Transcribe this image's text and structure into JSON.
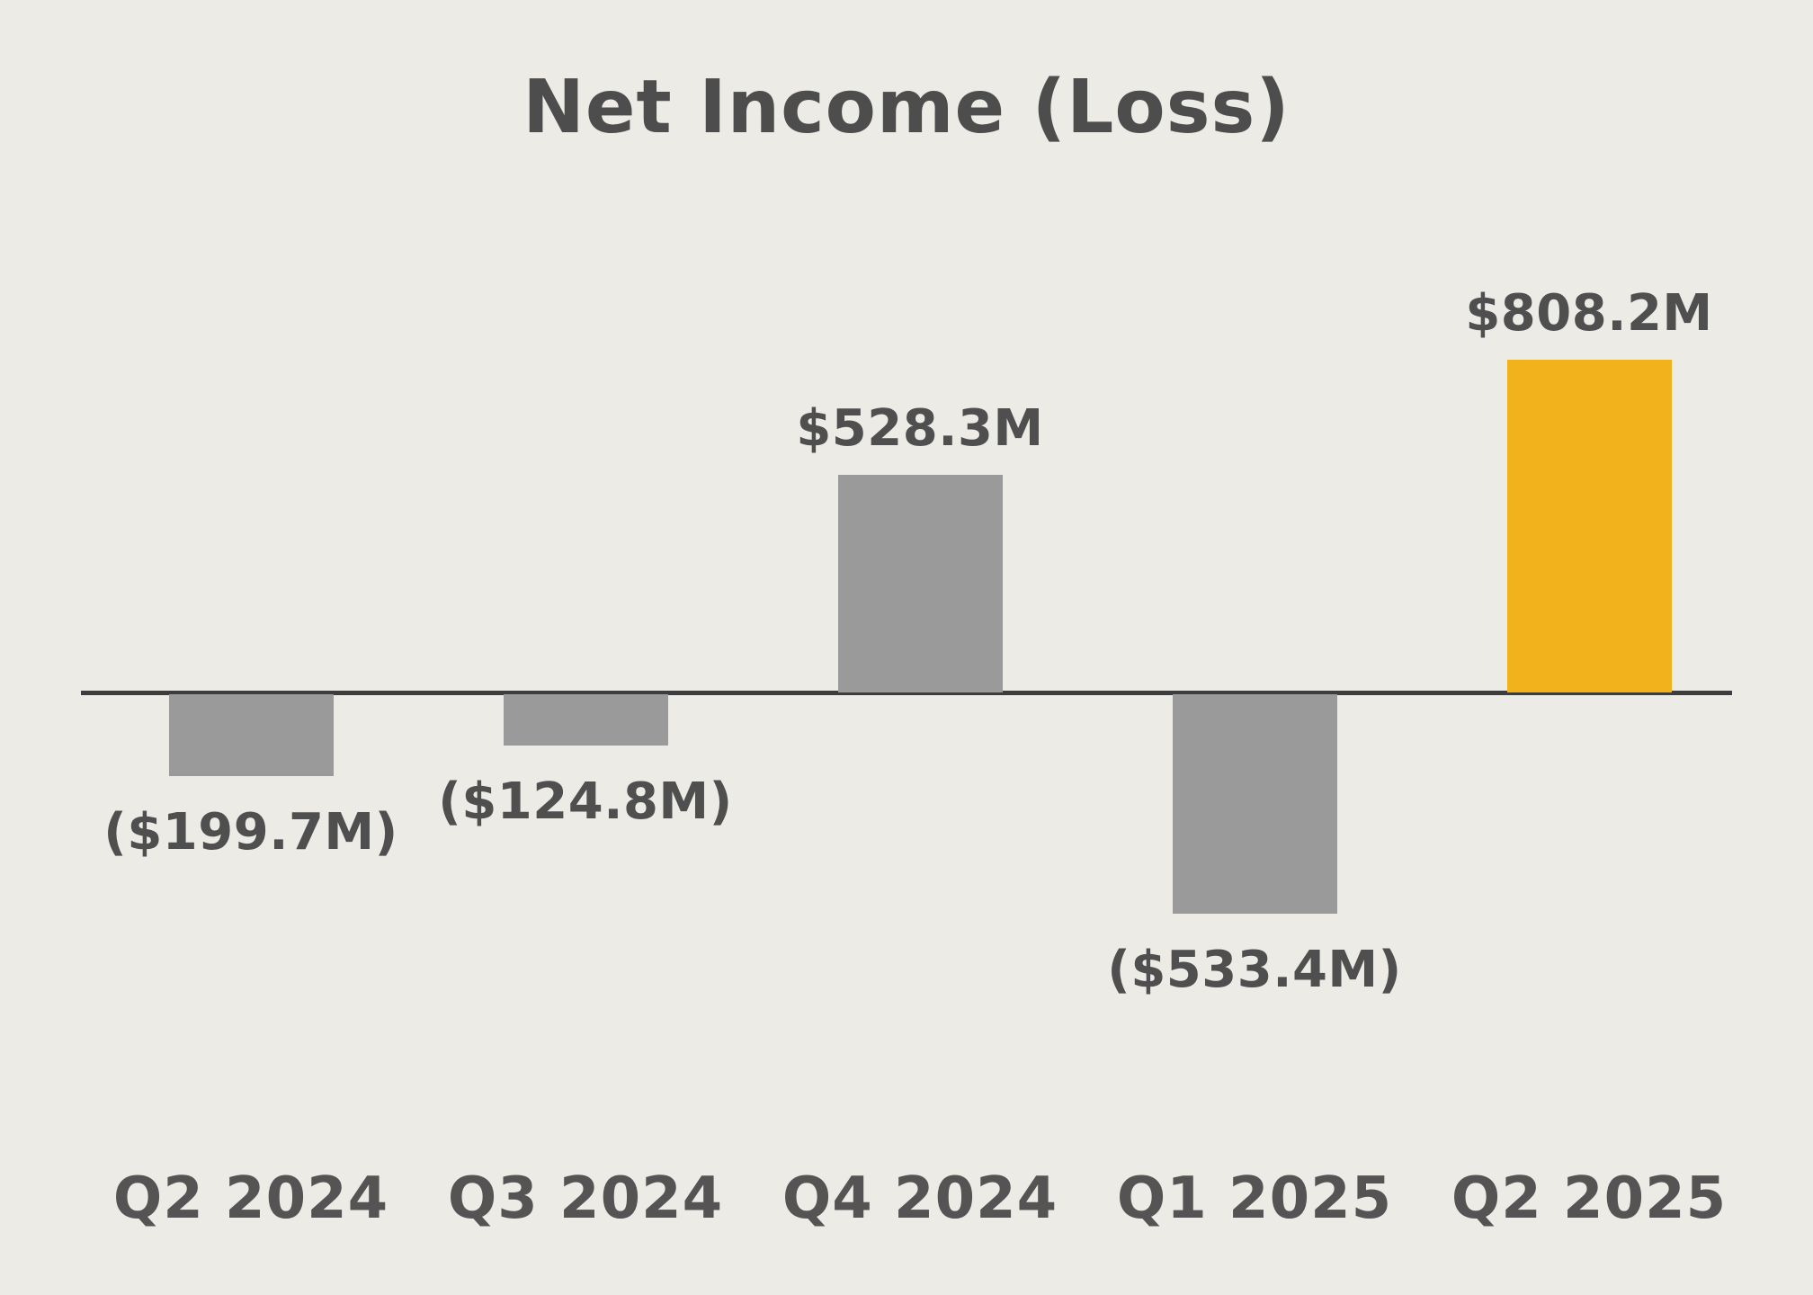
{
  "chart_data": {
    "type": "bar",
    "title": "Net Income (Loss)",
    "categories": [
      "Q2 2024",
      "Q3 2024",
      "Q4 2024",
      "Q1 2025",
      "Q2 2025"
    ],
    "values": [
      -199.7,
      -124.8,
      528.3,
      -533.4,
      808.2
    ],
    "data_labels": [
      "($199.7M)",
      "($124.8M)",
      "$528.3M",
      "($533.4M)",
      "$808.2M"
    ],
    "unit": "USD millions",
    "xlabel": "",
    "ylabel": "",
    "ylim": [
      -600,
      900
    ],
    "grid": false,
    "legend": null,
    "highlight_index": 4,
    "colors": {
      "bar": "#9a9a9a",
      "highlight": "#f2b21b",
      "baseline": "#3d3d3d",
      "background": "#edebe6",
      "text": "#4f4f4f"
    }
  }
}
